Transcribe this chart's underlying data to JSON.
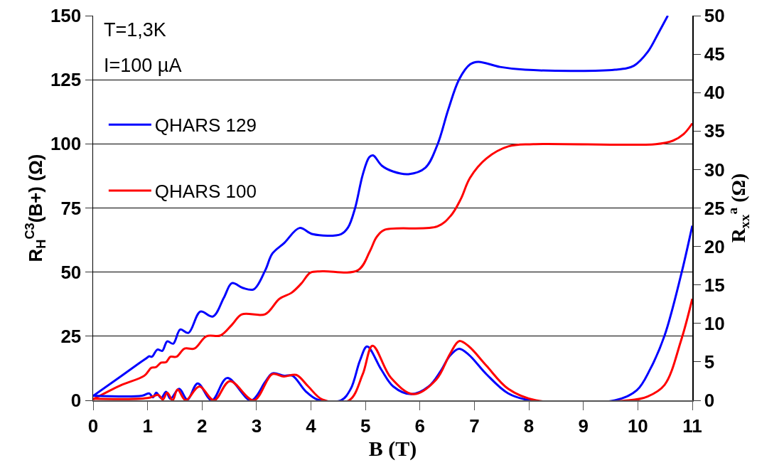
{
  "chart_data": {
    "type": "line",
    "xlabel": "B (T)",
    "ylabel": "R$_{H}$$^{C3}$(B+) (Ω)",
    "y2label": "R$_{xx}$$^{a}$ (Ω)",
    "annotations": [
      "T=1,3K",
      "I=100 µA"
    ],
    "xlim": [
      0,
      11
    ],
    "xticks": [
      0,
      1,
      2,
      3,
      4,
      5,
      6,
      7,
      8,
      9,
      10,
      11
    ],
    "ylim": [
      0,
      150
    ],
    "yticks": [
      0,
      25,
      50,
      75,
      100,
      125,
      150
    ],
    "y2lim": [
      0,
      50
    ],
    "y2ticks": [
      0,
      5,
      10,
      15,
      20,
      25,
      30,
      35,
      40,
      45,
      50
    ],
    "grid": "y",
    "legend": "top left",
    "series": [
      {
        "name": "QHARS 129",
        "color": "#0000ff",
        "x": [
          0,
          0.5,
          0.86,
          0.97,
          1.03,
          1.08,
          1.18,
          1.27,
          1.36,
          1.47,
          1.6,
          1.75,
          1.97,
          2.2,
          2.4,
          2.55,
          2.75,
          2.95,
          3.16,
          3.29,
          3.51,
          3.79,
          4.03,
          4.55,
          4.68,
          4.81,
          4.95,
          5.07,
          5.14,
          5.3,
          5.51,
          5.79,
          6.1,
          6.32,
          6.52,
          6.72,
          6.92,
          7.07,
          7.47,
          7.93,
          9.58,
          9.93,
          10.18,
          10.38,
          10.55
        ],
        "values": [
          1.7,
          9.2,
          14.7,
          16.3,
          17.2,
          17.0,
          19.8,
          19.3,
          23.0,
          22.1,
          27.6,
          26.3,
          34.6,
          32.7,
          40.0,
          45.7,
          43.8,
          43.3,
          50.7,
          57.2,
          61.4,
          67.2,
          64.8,
          64.8,
          67.4,
          75.0,
          88.0,
          94.8,
          95.5,
          91.5,
          89.2,
          88.2,
          90.7,
          99.6,
          113.4,
          125.2,
          131.0,
          132.0,
          130.0,
          128.9,
          128.9,
          130.5,
          135.8,
          143.3,
          150
        ]
      },
      {
        "name": "QHARS 100",
        "color": "#ff0000",
        "x": [
          0,
          0.5,
          0.94,
          1.07,
          1.15,
          1.25,
          1.34,
          1.42,
          1.53,
          1.68,
          1.86,
          2.08,
          2.34,
          2.55,
          2.73,
          3.16,
          3.42,
          3.64,
          3.82,
          3.99,
          4.21,
          4.86,
          5.08,
          5.2,
          5.34,
          6.32,
          6.57,
          6.75,
          6.92,
          7.22,
          7.62,
          8.08,
          10.33,
          10.64,
          10.84,
          11
        ],
        "values": [
          0.4,
          5.8,
          9.6,
          12.7,
          12.9,
          14.7,
          14.9,
          17.0,
          17.0,
          20.2,
          20.2,
          25.0,
          25.3,
          29.5,
          33.5,
          33.6,
          39.6,
          41.9,
          45.5,
          49.8,
          50.3,
          50.7,
          58.1,
          63.5,
          66.4,
          67.8,
          72.1,
          78.5,
          86.8,
          94.3,
          99.0,
          99.9,
          99.9,
          101.2,
          103.8,
          108
        ]
      },
      {
        "color": "#0000ff",
        "axis": "y2",
        "x": [
          0,
          0.9,
          1.03,
          1.1,
          1.16,
          1.25,
          1.34,
          1.42,
          1.58,
          1.73,
          1.92,
          2.18,
          2.46,
          2.9,
          3.16,
          3.29,
          3.51,
          3.66,
          3.9,
          4.12,
          4.55,
          4.73,
          4.9,
          5.03,
          5.29,
          5.51,
          5.84,
          6.16,
          6.38,
          6.55,
          6.72,
          6.9,
          7.22,
          7.62,
          8.03,
          9.58,
          9.98,
          10.23,
          10.49,
          10.79,
          11
        ],
        "values": [
          0.6,
          0.6,
          0.9,
          0.4,
          1.0,
          0.3,
          1.1,
          0.2,
          1.5,
          0.1,
          2.2,
          0,
          2.9,
          0,
          2.4,
          3.5,
          3.2,
          3.2,
          1.2,
          0.1,
          0,
          1.5,
          5.2,
          7.0,
          4.0,
          1.8,
          0.8,
          1.8,
          3.8,
          5.8,
          6.7,
          5.9,
          3.4,
          0.9,
          0,
          0,
          1.3,
          4.1,
          8.4,
          16.2,
          22.7
        ]
      },
      {
        "color": "#ff0000",
        "axis": "y2",
        "x": [
          0,
          1.0,
          1.2,
          1.28,
          1.36,
          1.46,
          1.55,
          1.7,
          1.95,
          2.22,
          2.51,
          2.95,
          3.29,
          3.5,
          3.73,
          3.95,
          4.21,
          4.7,
          4.95,
          5.13,
          5.47,
          5.88,
          6.3,
          6.55,
          6.72,
          6.9,
          7.22,
          7.62,
          8.13,
          9.83,
          10.18,
          10.49,
          10.79,
          11
        ],
        "values": [
          0.2,
          0.3,
          0.7,
          0.1,
          1.0,
          0,
          1.4,
          0,
          1.8,
          0,
          2.5,
          0,
          3.4,
          3.1,
          3.3,
          1.8,
          0.1,
          0,
          3.4,
          7.1,
          2.9,
          0.8,
          2.7,
          6.0,
          7.7,
          7.0,
          4.5,
          1.5,
          0,
          0,
          0.5,
          2.0,
          7.7,
          13.2
        ]
      }
    ]
  }
}
